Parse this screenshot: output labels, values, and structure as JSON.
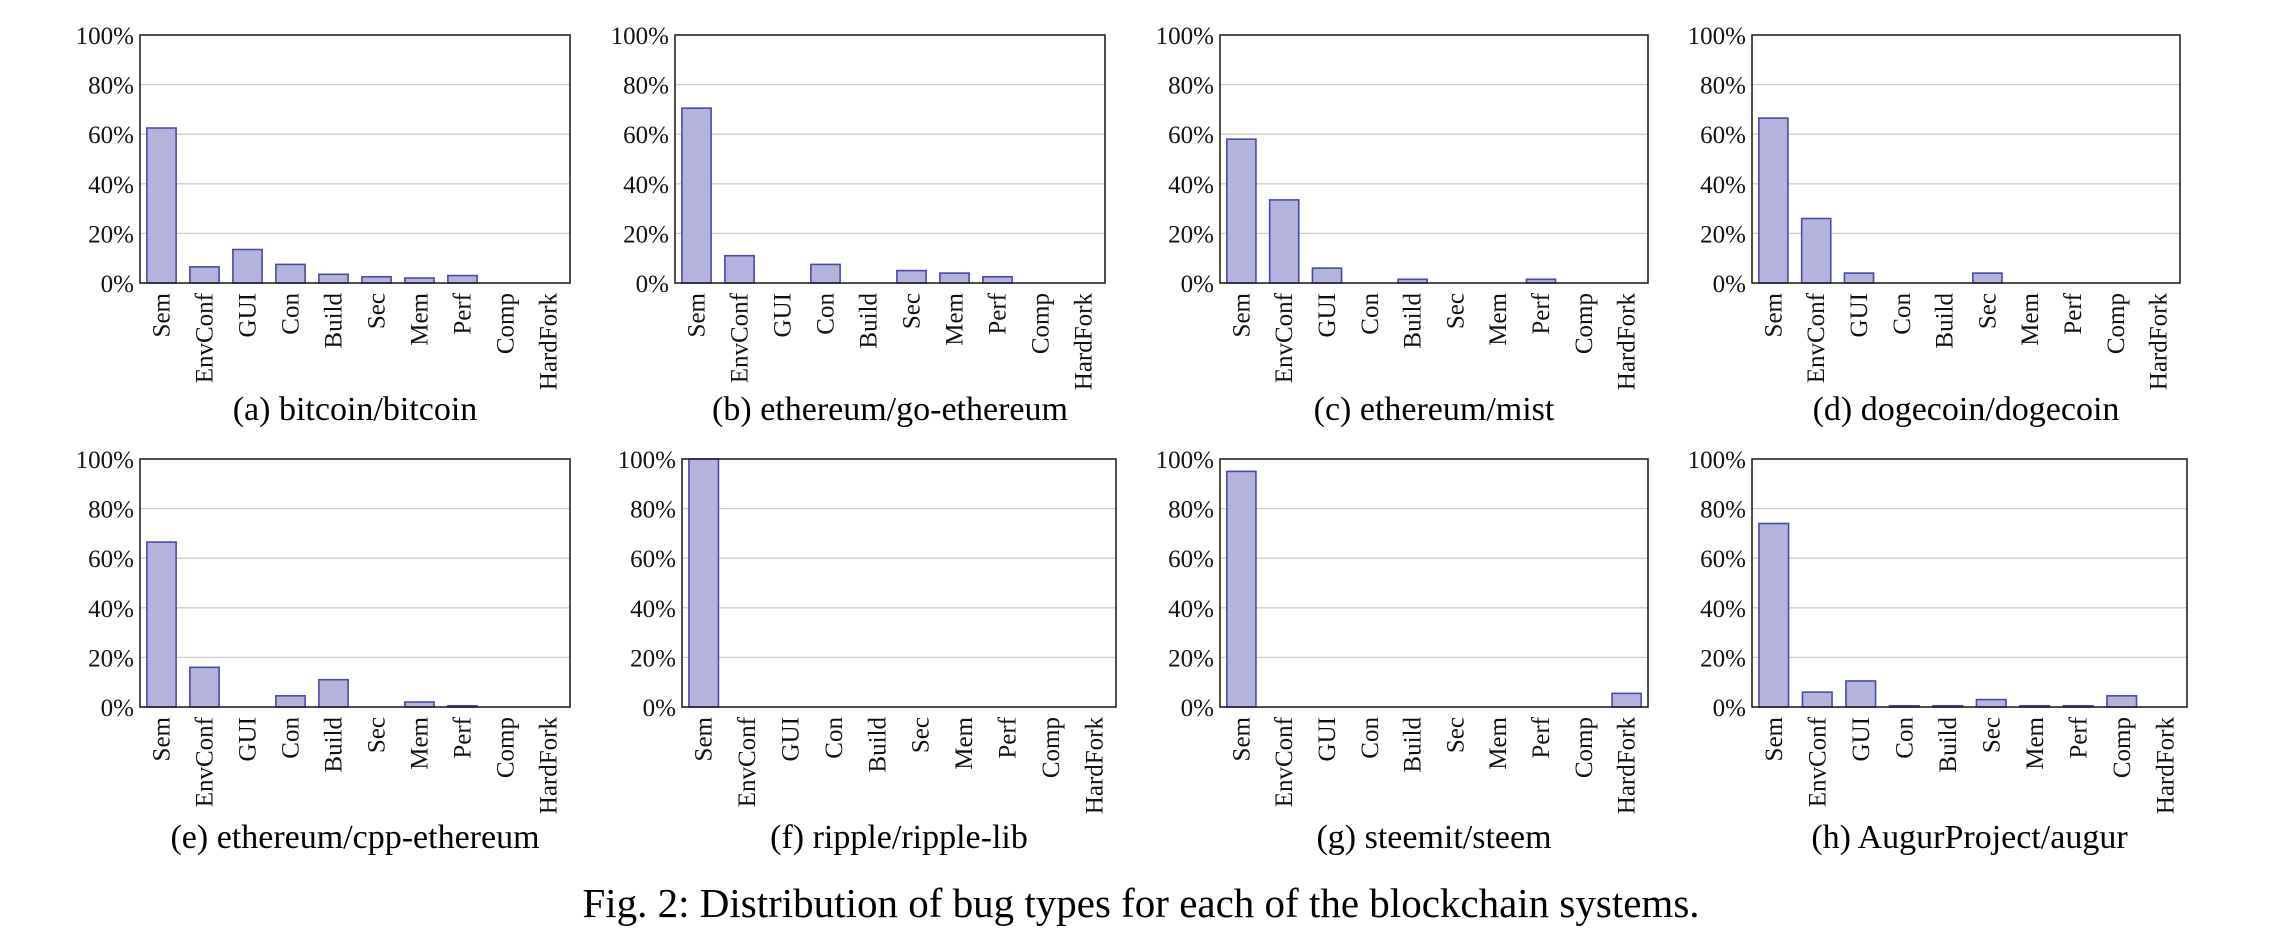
{
  "figure_caption": "Fig. 2: Distribution of bug types for each of the blockchain systems.",
  "colors": {
    "bar_fill": "#b3b3de",
    "bar_stroke": "#4a4aa8",
    "grid": "#d0d0d0"
  },
  "chart_data": [
    {
      "type": "bar",
      "caption": "(a)  bitcoin/bitcoin",
      "categories": [
        "Sem",
        "EnvConf",
        "GUI",
        "Con",
        "Build",
        "Sec",
        "Mem",
        "Perf",
        "Comp",
        "HardFork"
      ],
      "values": [
        62.5,
        6.5,
        13.5,
        7.5,
        3.5,
        2.5,
        2,
        3,
        0,
        0
      ],
      "yticks": [
        "0%",
        "20%",
        "40%",
        "60%",
        "80%",
        "100%"
      ],
      "ylim": [
        0,
        100
      ],
      "grid": true
    },
    {
      "type": "bar",
      "caption": "(b)  ethereum/go-ethereum",
      "categories": [
        "Sem",
        "EnvConf",
        "GUI",
        "Con",
        "Build",
        "Sec",
        "Mem",
        "Perf",
        "Comp",
        "HardFork"
      ],
      "values": [
        70.5,
        11,
        0,
        7.5,
        0,
        5,
        4,
        2.5,
        0,
        0
      ],
      "yticks": [
        "0%",
        "20%",
        "40%",
        "60%",
        "80%",
        "100%"
      ],
      "ylim": [
        0,
        100
      ],
      "grid": true
    },
    {
      "type": "bar",
      "caption": "(c)  ethereum/mist",
      "categories": [
        "Sem",
        "EnvConf",
        "GUI",
        "Con",
        "Build",
        "Sec",
        "Mem",
        "Perf",
        "Comp",
        "HardFork"
      ],
      "values": [
        58,
        33.5,
        6,
        0,
        1.5,
        0,
        0,
        1.5,
        0,
        0
      ],
      "yticks": [
        "0%",
        "20%",
        "40%",
        "60%",
        "80%",
        "100%"
      ],
      "ylim": [
        0,
        100
      ],
      "grid": true
    },
    {
      "type": "bar",
      "caption": "(d)  dogecoin/dogecoin",
      "categories": [
        "Sem",
        "EnvConf",
        "GUI",
        "Con",
        "Build",
        "Sec",
        "Mem",
        "Perf",
        "Comp",
        "HardFork"
      ],
      "values": [
        66.5,
        26,
        4,
        0,
        0,
        4,
        0,
        0,
        0,
        0
      ],
      "yticks": [
        "0%",
        "20%",
        "40%",
        "60%",
        "80%",
        "100%"
      ],
      "ylim": [
        0,
        100
      ],
      "grid": true
    },
    {
      "type": "bar",
      "caption": "(e)  ethereum/cpp-ethereum",
      "categories": [
        "Sem",
        "EnvConf",
        "GUI",
        "Con",
        "Build",
        "Sec",
        "Mem",
        "Perf",
        "Comp",
        "HardFork"
      ],
      "values": [
        66.5,
        16,
        0,
        4.5,
        11,
        0,
        2,
        0.5,
        0,
        0
      ],
      "yticks": [
        "0%",
        "20%",
        "40%",
        "60%",
        "80%",
        "100%"
      ],
      "ylim": [
        0,
        100
      ],
      "grid": true
    },
    {
      "type": "bar",
      "caption": "(f)  ripple/ripple-lib",
      "categories": [
        "Sem",
        "EnvConf",
        "GUI",
        "Con",
        "Build",
        "Sec",
        "Mem",
        "Perf",
        "Comp",
        "HardFork"
      ],
      "values": [
        100,
        0,
        0,
        0,
        0,
        0,
        0,
        0,
        0,
        0
      ],
      "yticks": [
        "0%",
        "20%",
        "40%",
        "60%",
        "80%",
        "100%"
      ],
      "ylim": [
        0,
        100
      ],
      "grid": true
    },
    {
      "type": "bar",
      "caption": "(g)  steemit/steem",
      "categories": [
        "Sem",
        "EnvConf",
        "GUI",
        "Con",
        "Build",
        "Sec",
        "Mem",
        "Perf",
        "Comp",
        "HardFork"
      ],
      "values": [
        95,
        0,
        0,
        0,
        0,
        0,
        0,
        0,
        0,
        5.5
      ],
      "yticks": [
        "0%",
        "20%",
        "40%",
        "60%",
        "80%",
        "100%"
      ],
      "ylim": [
        0,
        100
      ],
      "grid": true
    },
    {
      "type": "bar",
      "caption": "(h)  AugurProject/augur",
      "categories": [
        "Sem",
        "EnvConf",
        "GUI",
        "Con",
        "Build",
        "Sec",
        "Mem",
        "Perf",
        "Comp",
        "HardFork"
      ],
      "values": [
        74,
        6,
        10.5,
        0.5,
        0.5,
        3,
        0.5,
        0.5,
        4.5,
        0
      ],
      "yticks": [
        "0%",
        "20%",
        "40%",
        "60%",
        "80%",
        "100%"
      ],
      "ylim": [
        0,
        100
      ],
      "grid": true
    }
  ]
}
